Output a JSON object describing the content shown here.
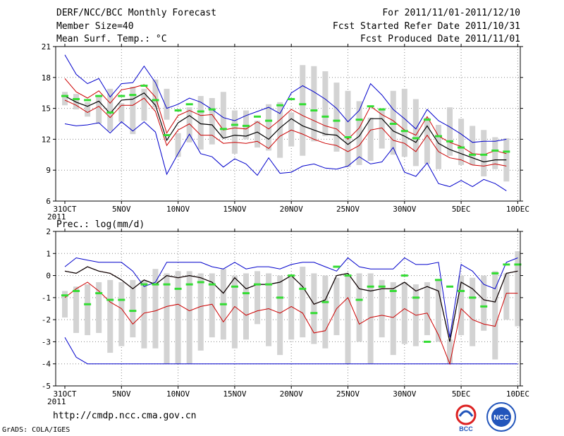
{
  "header": {
    "title": "DERF/NCC/BCC Monthly Forecast",
    "member_size": "Member Size=40",
    "variable": "Mean Surf. Temp.: °C",
    "period": "For 2011/11/01-2011/12/10",
    "refer_date": "Fcst Started Refer Date 2011/10/31",
    "produced_date": "Fcst Produced Date 2011/11/01"
  },
  "footer": {
    "url": "http://cmdp.ncc.cma.gov.cn",
    "credit": "GrADS: COLA/IGES",
    "logo_bcc": "BCC",
    "logo_ncc": "NCC"
  },
  "colors": {
    "box": "#d3d3d3",
    "ensemble_mean": "#000000",
    "spread": "#cc0000",
    "extremes": "#0000cc",
    "median": "#33dd33",
    "grid": "#888888"
  },
  "chart_data": [
    {
      "type": "box",
      "title": "Mean Surf. Temp.: °C",
      "ylim": [
        6,
        21
      ],
      "yticks": [
        6,
        9,
        12,
        15,
        18,
        21
      ],
      "x_tick_labels": [
        "31OCT",
        "5NOV",
        "10NOV",
        "15NOV",
        "20NOV",
        "25NOV",
        "30NOV",
        "5DEC",
        "10DEC"
      ],
      "x_tick_sublabel": "2011",
      "series": {
        "box_high": [
          16.6,
          16.4,
          15.6,
          16.1,
          16.9,
          15.5,
          17.1,
          16.9,
          17.8,
          16.9,
          12.6,
          15.1,
          16.2,
          16.0,
          16.6,
          14.8,
          14.8,
          13.8,
          15.4,
          15.6,
          14.6,
          19.2,
          19.1,
          18.6,
          17.5,
          16.7,
          15.7,
          14.1,
          15.0,
          16.7,
          16.9,
          15.9,
          14.1,
          13.4,
          15.1,
          14.0,
          13.3,
          12.9,
          12.2,
          12.1
        ],
        "box_low": [
          15.3,
          14.9,
          14.2,
          13.5,
          12.8,
          13.7,
          12.5,
          13.8,
          15.1,
          13.9,
          10.3,
          11.7,
          11.0,
          11.5,
          12.1,
          10.6,
          12.0,
          11.2,
          10.9,
          10.2,
          11.3,
          10.4,
          11.8,
          12.3,
          10.8,
          9.3,
          9.5,
          9.9,
          11.1,
          10.5,
          10.3,
          9.4,
          9.6,
          9.1,
          10.4,
          9.5,
          9.5,
          8.4,
          9.1,
          7.9
        ],
        "median": [
          16.2,
          15.9,
          15.8,
          16.2,
          14.6,
          16.2,
          16.3,
          17.2,
          15.8,
          12.4,
          14.8,
          15.4,
          14.7,
          14.9,
          13.0,
          13.4,
          13.3,
          14.2,
          13.8,
          15.3,
          15.9,
          15.4,
          14.8,
          14.2,
          13.8,
          12.2,
          13.9,
          15.2,
          14.9,
          13.5,
          12.8,
          12.1,
          13.9,
          12.3,
          11.8,
          11.2,
          10.5,
          10.5,
          10.9,
          10.8
        ],
        "mean": [
          16.2,
          15.6,
          15.2,
          15.7,
          14.5,
          15.8,
          15.9,
          16.5,
          15.3,
          11.9,
          13.6,
          14.3,
          13.5,
          13.4,
          12.1,
          12.4,
          12.3,
          12.7,
          12.0,
          13.1,
          14.0,
          13.3,
          12.9,
          12.5,
          12.4,
          11.5,
          12.3,
          14.0,
          14.0,
          12.8,
          12.3,
          11.7,
          13.3,
          11.6,
          11.0,
          10.6,
          10.2,
          9.8,
          10.0,
          10.0
        ],
        "spread_high": [
          17.9,
          16.6,
          16.0,
          16.7,
          15.5,
          16.8,
          17.0,
          17.3,
          16.1,
          12.6,
          14.3,
          14.8,
          14.3,
          14.4,
          12.9,
          13.1,
          13.0,
          13.7,
          13.0,
          13.9,
          14.9,
          14.3,
          13.8,
          13.3,
          13.0,
          12.0,
          13.1,
          15.2,
          14.4,
          13.8,
          12.9,
          12.4,
          14.2,
          12.3,
          11.7,
          11.3,
          10.6,
          10.5,
          10.9,
          10.6
        ],
        "spread_low": [
          15.8,
          15.3,
          14.6,
          15.2,
          14.1,
          15.3,
          15.3,
          16.0,
          14.7,
          11.4,
          12.9,
          13.5,
          12.4,
          12.4,
          11.6,
          11.7,
          11.6,
          11.8,
          11.1,
          12.3,
          12.9,
          12.5,
          12.0,
          11.6,
          11.4,
          10.8,
          11.4,
          12.9,
          13.1,
          11.9,
          11.6,
          10.8,
          12.4,
          10.8,
          10.2,
          10.0,
          9.5,
          9.4,
          9.6,
          9.4
        ],
        "max": [
          20.2,
          18.3,
          17.4,
          17.9,
          16.1,
          17.4,
          17.5,
          19.1,
          17.5,
          15.0,
          15.4,
          16.0,
          15.6,
          14.9,
          14.1,
          13.8,
          14.3,
          14.7,
          15.1,
          14.5,
          16.5,
          17.2,
          16.6,
          15.9,
          15.0,
          13.7,
          14.8,
          17.4,
          16.3,
          14.9,
          14.0,
          13.0,
          14.9,
          13.8,
          13.2,
          12.5,
          11.7,
          11.8,
          11.8,
          12.0
        ],
        "min": [
          13.5,
          13.3,
          13.4,
          13.6,
          12.6,
          13.7,
          12.8,
          13.7,
          12.7,
          8.6,
          10.6,
          12.5,
          10.6,
          10.3,
          9.3,
          10.1,
          9.6,
          8.5,
          10.2,
          8.7,
          8.8,
          9.4,
          9.6,
          9.2,
          9.1,
          9.4,
          10.3,
          9.6,
          9.8,
          11.2,
          8.8,
          8.4,
          9.7,
          7.7,
          7.4,
          8.0,
          7.4,
          8.1,
          7.7,
          7.0
        ]
      }
    },
    {
      "type": "box",
      "title": "Prec.: log(mm/d)",
      "ylim": [
        -5,
        2
      ],
      "yticks": [
        -5,
        -4,
        -3,
        -2,
        -1,
        0,
        1,
        2
      ],
      "x_tick_labels": [
        "31OCT",
        "5NOV",
        "10NOV",
        "15NOV",
        "20NOV",
        "25NOV",
        "30NOV",
        "5DEC",
        "10DEC"
      ],
      "x_tick_sublabel": "2011",
      "series": {
        "box_high": [
          -0.7,
          -0.5,
          -0.4,
          -0.3,
          -0.2,
          -0.3,
          -0.2,
          -0.2,
          0.3,
          0.1,
          0.2,
          0.2,
          0.1,
          0.1,
          0.3,
          0.0,
          0.1,
          0.2,
          0.1,
          0.0,
          0.0,
          0.4,
          0.1,
          0.0,
          -0.1,
          0.0,
          0.1,
          0.1,
          -0.2,
          -0.3,
          -0.3,
          -0.4,
          -0.3,
          -0.2,
          -2.9,
          0.0,
          -0.1,
          0.0,
          0.2,
          0.1,
          1.1
        ],
        "box_low": [
          -1.9,
          -2.6,
          -2.7,
          -2.6,
          -3.5,
          -3.2,
          -2.8,
          -3.3,
          -3.3,
          -4.0,
          -4.0,
          -4.0,
          -3.4,
          -2.8,
          -2.9,
          -3.3,
          -2.9,
          -2.2,
          -3.2,
          -3.6,
          -2.9,
          -2.8,
          -3.1,
          -3.3,
          -2.7,
          -4.0,
          -3.0,
          -4.0,
          -2.8,
          -3.6,
          -3.1,
          -3.2,
          -2.7,
          -3.0,
          -4.0,
          -2.7,
          -3.2,
          -2.5,
          -3.8,
          -2.0,
          -2.3
        ],
        "median": [
          -0.9,
          -0.7,
          -1.3,
          -0.8,
          -1.1,
          -1.1,
          -1.6,
          -0.4,
          -0.4,
          -0.4,
          -0.6,
          -0.4,
          -0.3,
          -0.4,
          -1.3,
          -0.5,
          -0.8,
          -0.4,
          -0.4,
          -1.0,
          0.0,
          -0.6,
          -1.7,
          -1.2,
          0.4,
          0.0,
          -1.1,
          -0.5,
          -0.5,
          -0.7,
          0.0,
          -1.0,
          -3.0,
          -0.2,
          -0.5,
          -0.7,
          -1.0,
          -1.4,
          0.1,
          0.5,
          0.5
        ],
        "mean": [
          0.2,
          0.1,
          0.4,
          0.2,
          0.1,
          -0.2,
          -0.6,
          -0.2,
          -0.4,
          0.0,
          -0.1,
          0.0,
          -0.1,
          -0.3,
          -0.8,
          -0.1,
          -0.6,
          -0.4,
          -0.4,
          -0.3,
          0.0,
          -0.5,
          -1.3,
          -1.1,
          0.0,
          0.1,
          -0.6,
          -0.7,
          -0.6,
          -0.6,
          -0.3,
          -0.7,
          -0.5,
          -0.7,
          -3.0,
          -0.3,
          -0.6,
          -1.1,
          -1.2,
          0.1,
          0.2
        ],
        "spread_high": [
          0.2,
          0.1,
          0.4,
          0.2,
          0.1,
          -0.2,
          -0.6,
          -0.2,
          -0.4,
          0.0,
          -0.1,
          0.0,
          -0.1,
          -0.3,
          -0.8,
          -0.1,
          -0.6,
          -0.4,
          -0.4,
          -0.3,
          0.0,
          -0.5,
          -1.3,
          -1.1,
          0.0,
          0.1,
          -0.6,
          -0.7,
          -0.6,
          -0.6,
          -0.3,
          -0.7,
          -0.5,
          -0.7,
          -3.0,
          -0.3,
          -0.6,
          -1.1,
          -1.2,
          0.1,
          0.2
        ],
        "spread_low": [
          -1.0,
          -0.6,
          -0.3,
          -0.7,
          -1.2,
          -1.5,
          -2.2,
          -1.7,
          -1.6,
          -1.4,
          -1.3,
          -1.6,
          -1.4,
          -1.3,
          -2.1,
          -1.4,
          -1.8,
          -1.6,
          -1.5,
          -1.7,
          -1.4,
          -1.7,
          -2.6,
          -2.5,
          -1.5,
          -1.0,
          -2.2,
          -1.9,
          -1.8,
          -1.9,
          -1.5,
          -1.8,
          -1.7,
          -2.7,
          -4.0,
          -1.5,
          -2.0,
          -2.2,
          -2.3,
          -0.8,
          -0.8
        ],
        "max": [
          0.4,
          0.8,
          0.7,
          0.6,
          0.6,
          0.6,
          0.2,
          -0.5,
          -0.3,
          0.6,
          0.6,
          0.6,
          0.6,
          0.4,
          0.3,
          0.6,
          0.3,
          0.4,
          0.4,
          0.3,
          0.5,
          0.6,
          0.6,
          0.4,
          0.2,
          0.8,
          0.4,
          0.3,
          0.3,
          0.3,
          0.8,
          0.5,
          0.5,
          0.6,
          -2.8,
          0.5,
          0.2,
          -0.4,
          -0.6,
          0.6,
          0.8
        ],
        "min": [
          -2.8,
          -3.7,
          -4.0,
          -4.0,
          -4.0,
          -4.0,
          -4.0,
          -4.0,
          -4.0,
          -4.0,
          -4.0,
          -4.0,
          -4.0,
          -4.0,
          -4.0,
          -4.0,
          -4.0,
          -4.0,
          -4.0,
          -4.0,
          -4.0,
          -4.0,
          -4.0,
          -4.0,
          -4.0,
          -4.0,
          -4.0,
          -4.0,
          -4.0,
          -4.0,
          -4.0,
          -4.0,
          -4.0,
          -4.0,
          -4.0,
          -4.0,
          -4.0,
          -4.0,
          -4.0,
          -4.0,
          -4.0
        ]
      }
    }
  ]
}
